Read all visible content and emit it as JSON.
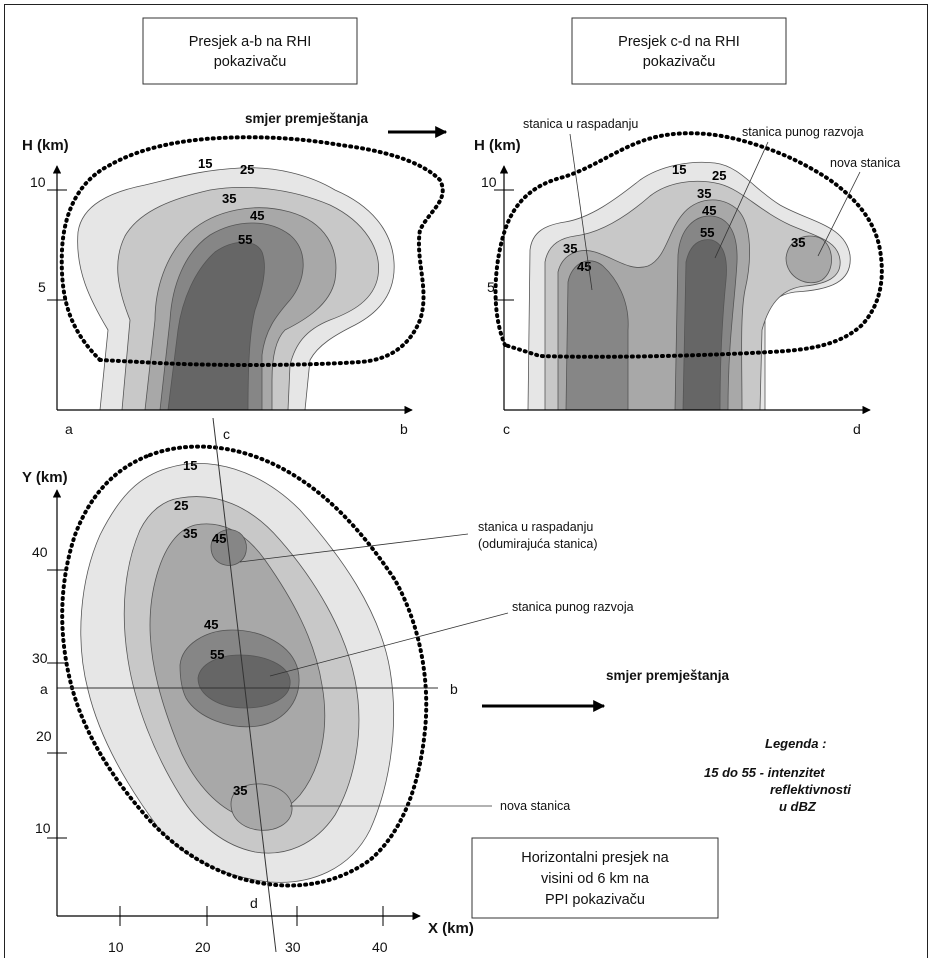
{
  "top_left": {
    "caption_line1": "Presjek a-b na RHI",
    "caption_line2": "pokazivaču",
    "y_axis": "H (km)",
    "y_ticks": [
      "10",
      "5"
    ],
    "x_start": "a",
    "x_end": "b",
    "contours": [
      "15",
      "25",
      "35",
      "45",
      "55"
    ]
  },
  "top_right": {
    "caption_line1": "Presjek c-d na RHI",
    "caption_line2": "pokazivaču",
    "y_axis": "H (km)",
    "y_ticks": [
      "10",
      "5"
    ],
    "x_start": "c",
    "x_end": "d",
    "contours": [
      "15",
      "25",
      "35",
      "45",
      "55",
      "35",
      "35",
      "45"
    ],
    "label_decaying": "stanica u raspadanju",
    "label_mature": "stanica punog razvoja",
    "label_new": "nova stanica"
  },
  "top_direction": "smjer premještanja",
  "bottom": {
    "y_axis": "Y (km)",
    "x_axis": "X (km)",
    "y_ticks": [
      "40",
      "30",
      "20",
      "10"
    ],
    "x_ticks": [
      "10",
      "20",
      "30",
      "40"
    ],
    "section_a": "a",
    "section_b": "b",
    "section_c": "c",
    "section_d": "d",
    "contours": [
      "15",
      "25",
      "35",
      "45",
      "45",
      "55",
      "35"
    ],
    "label_decaying_1": "stanica u raspadanju",
    "label_decaying_2": "(odumirajuća stanica)",
    "label_mature": "stanica punog razvoja",
    "label_new": "nova stanica",
    "direction": "smjer premještanja",
    "caption_line1": "Horizontalni presjek na",
    "caption_line2": "visini od 6 km na",
    "caption_line3": "PPI pokazivaču"
  },
  "legend": {
    "title": "Legenda :",
    "line1": "15 do 55 - intenzitet",
    "line2": "reflektivnosti",
    "line3": "u dBZ"
  },
  "colors": {
    "level_15": "#e6e6e6",
    "level_25": "#c8c8c8",
    "level_35": "#a8a8a8",
    "level_45": "#868686",
    "level_55": "#666666"
  }
}
